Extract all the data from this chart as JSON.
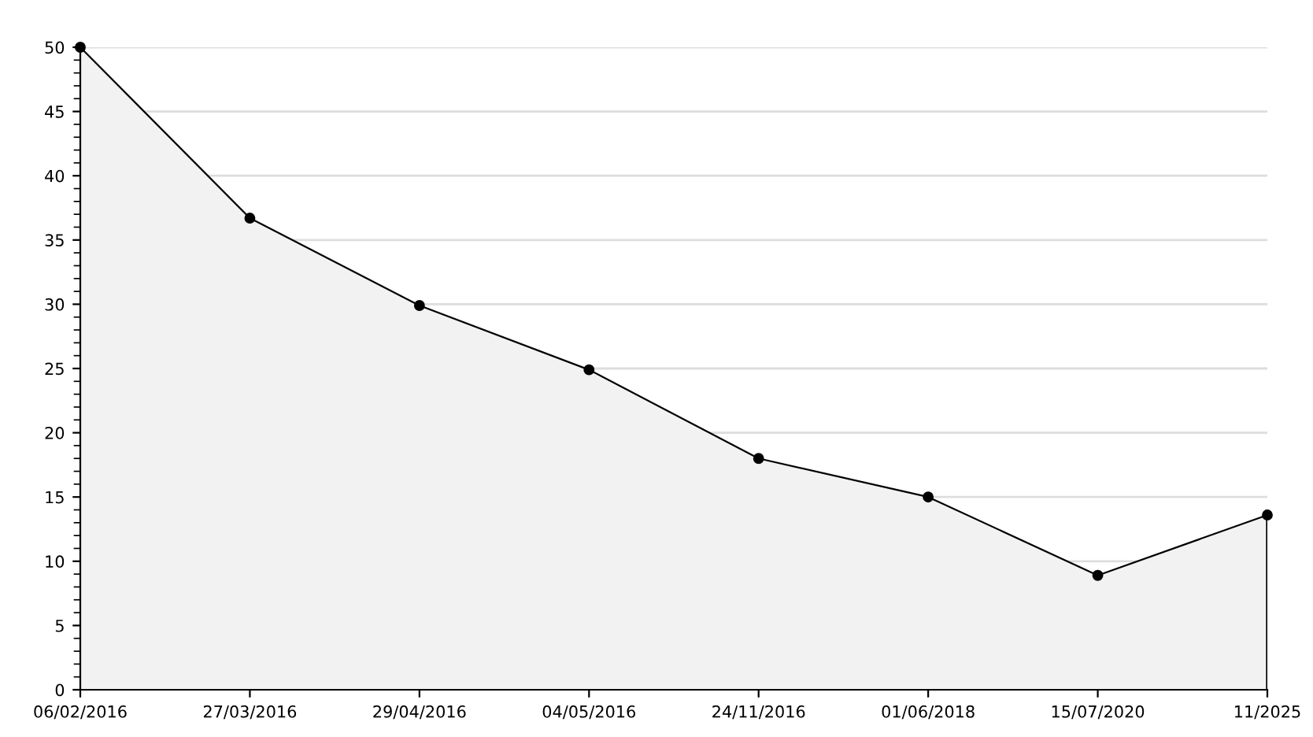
{
  "chart_data": {
    "type": "area",
    "categories": [
      "06/02/2016",
      "27/03/2016",
      "29/04/2016",
      "04/05/2016",
      "24/11/2016",
      "01/06/2018",
      "15/07/2020",
      "11/2025"
    ],
    "series": [
      {
        "color": "#000000",
        "values": [
          50,
          36.7,
          29.9,
          24.9,
          18,
          15,
          8.9,
          13.6
        ]
      }
    ],
    "ylim": [
      0,
      50
    ],
    "yticks": [
      0,
      5,
      10,
      15,
      20,
      25,
      30,
      35,
      40,
      45,
      50
    ],
    "grid": "y",
    "marker": "circle",
    "line_style": "solid",
    "legend": false
  }
}
